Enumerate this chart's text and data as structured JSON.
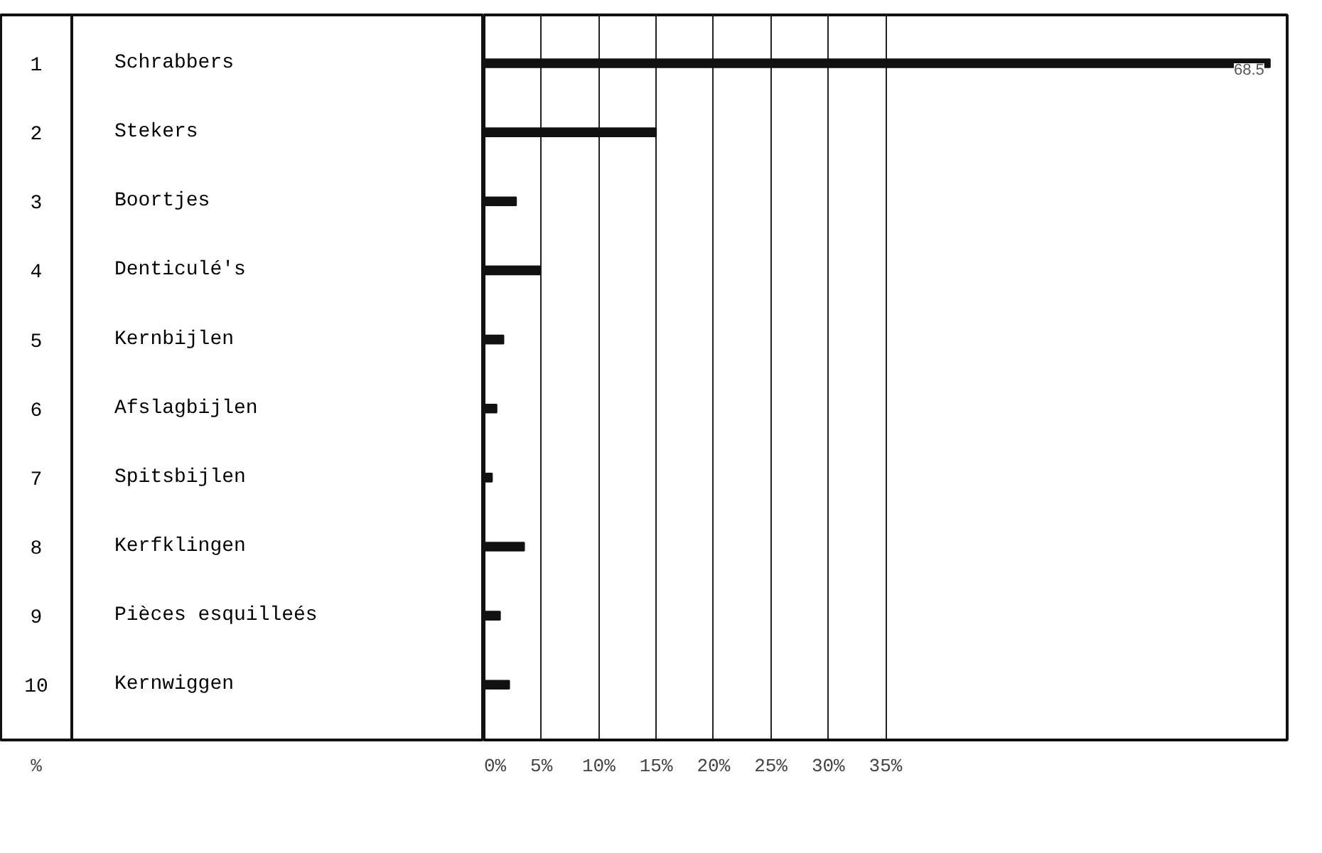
{
  "chart_data": {
    "type": "bar",
    "orientation": "horizontal",
    "xlabel": "%",
    "categories": [
      "Schrabbers",
      "Stekers",
      "Boortjes",
      "Denticulé's",
      "Kernbijlen",
      "Afslagbijlen",
      "Spitsbijlen",
      "Kerfklingen",
      "Pièces esquilleés",
      "Kernwiggen"
    ],
    "values": [
      68.5,
      15,
      2.8,
      4.9,
      1.7,
      1.1,
      0.7,
      3.5,
      1.4,
      2.2
    ],
    "value_labels": [
      "68.5",
      null,
      null,
      null,
      null,
      null,
      null,
      null,
      null,
      null
    ],
    "color": "#111111",
    "xlim": [
      0,
      70
    ],
    "xticks": [
      {
        "value": 0,
        "label": "0%"
      },
      {
        "value": 5,
        "label": "5%"
      },
      {
        "value": 10,
        "label": "10%"
      },
      {
        "value": 15,
        "label": "15%"
      },
      {
        "value": 20,
        "label": "20%"
      },
      {
        "value": 25,
        "label": "25%"
      },
      {
        "value": 30,
        "label": "30%"
      },
      {
        "value": 35,
        "label": "35%"
      }
    ],
    "annotations": [
      "1",
      "2",
      "3",
      "4",
      "5",
      "6",
      "7",
      "8",
      "9",
      "10"
    ],
    "grid": "x"
  }
}
